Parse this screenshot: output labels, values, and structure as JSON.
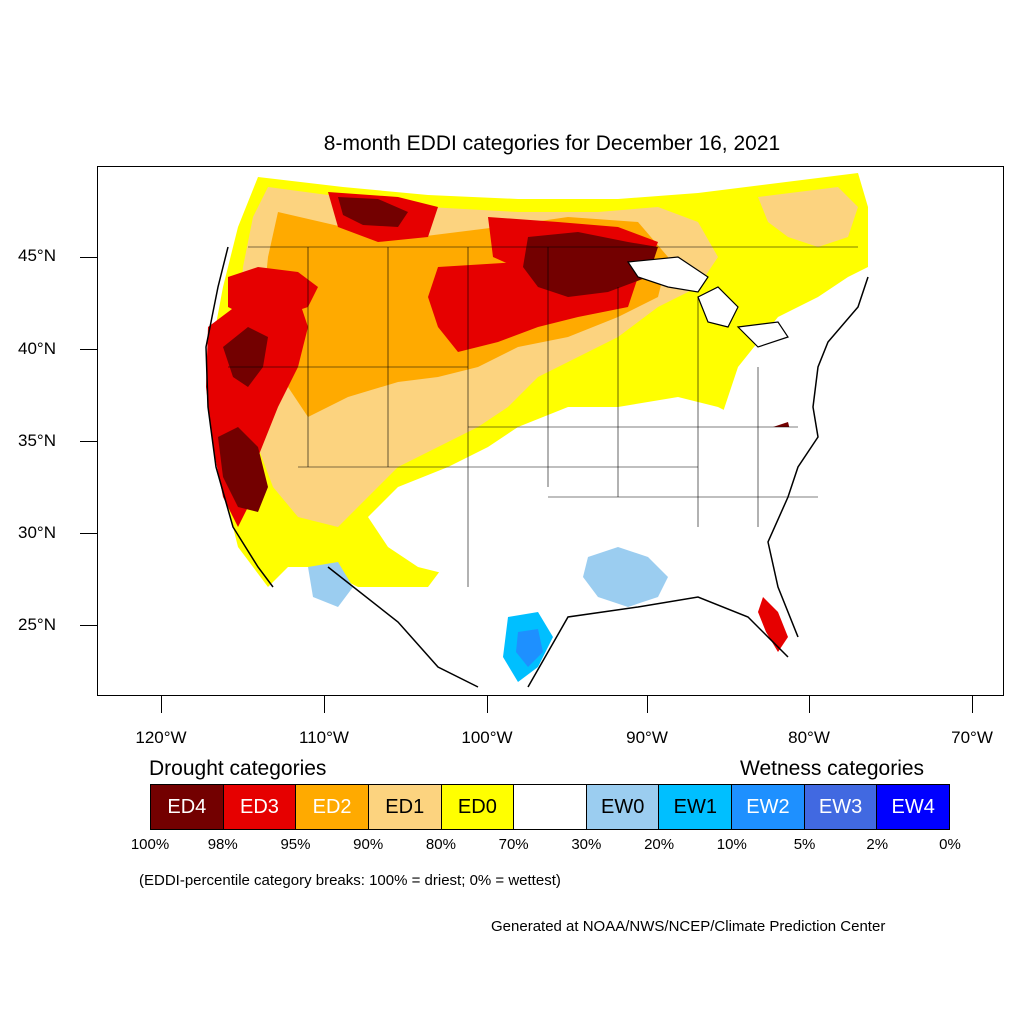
{
  "title": "8-month EDDI categories for December 16, 2021",
  "lat_labels": [
    "45°N",
    "40°N",
    "35°N",
    "30°N",
    "25°N"
  ],
  "lon_labels": [
    "120°W",
    "110°W",
    "100°W",
    "90°W",
    "80°W",
    "70°W"
  ],
  "legend": {
    "drought_heading": "Drought categories",
    "wetness_heading": "Wetness categories",
    "categories": [
      {
        "label": "ED4",
        "color": "#730000",
        "text_color": "#ffffff"
      },
      {
        "label": "ED3",
        "color": "#e60000",
        "text_color": "#ffffff"
      },
      {
        "label": "ED2",
        "color": "#ffaa00",
        "text_color": "#ffffff"
      },
      {
        "label": "ED1",
        "color": "#fcd37f",
        "text_color": "#000000"
      },
      {
        "label": "ED0",
        "color": "#ffff00",
        "text_color": "#000000"
      },
      {
        "label": "",
        "color": "#ffffff",
        "text_color": "#000000"
      },
      {
        "label": "EW0",
        "color": "#9bcdf0",
        "text_color": "#000000"
      },
      {
        "label": "EW1",
        "color": "#00bfff",
        "text_color": "#000000"
      },
      {
        "label": "EW2",
        "color": "#1e90ff",
        "text_color": "#ffffff"
      },
      {
        "label": "EW3",
        "color": "#4169e1",
        "text_color": "#ffffff"
      },
      {
        "label": "EW4",
        "color": "#0000ff",
        "text_color": "#ffffff"
      }
    ],
    "percent_breaks": [
      "100%",
      "98%",
      "95%",
      "90%",
      "80%",
      "70%",
      "30%",
      "20%",
      "10%",
      "5%",
      "2%",
      "0%"
    ]
  },
  "note": "(EDDI-percentile category breaks: 100% = driest; 0% = wettest)",
  "credit": "Generated at NOAA/NWS/NCEP/Climate Prediction Center"
}
